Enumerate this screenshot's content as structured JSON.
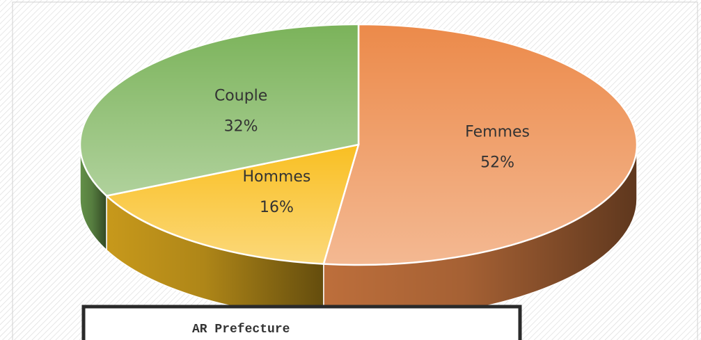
{
  "chart_data": {
    "type": "pie3d",
    "categories": [
      "Femmes",
      "Hommes",
      "Couple"
    ],
    "values": [
      52,
      16,
      32
    ],
    "value_labels": [
      "52%",
      "16%",
      "32%"
    ],
    "colors": [
      "#ec8a4a",
      "#f9bf22",
      "#7bb35a"
    ],
    "annotation": "AR Prefecture"
  }
}
